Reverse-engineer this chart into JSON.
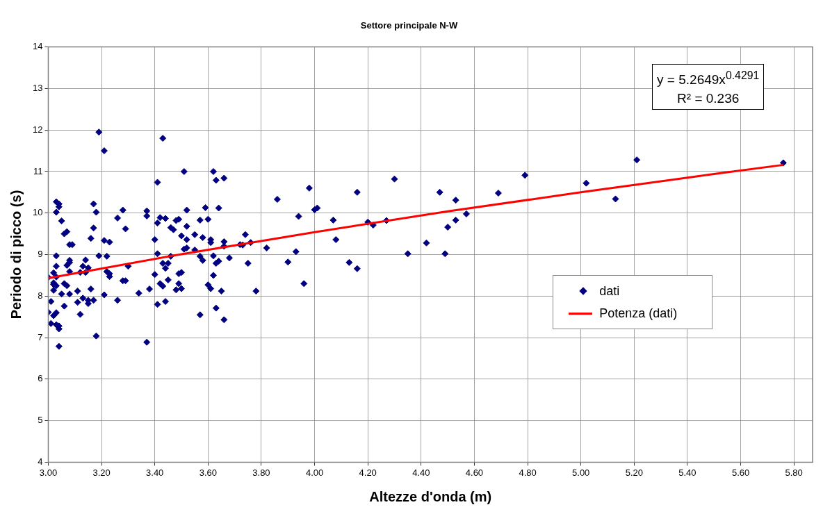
{
  "chart_data": {
    "type": "scatter",
    "title": "Settore principale N-W",
    "xlabel": "Altezze d'onda (m)",
    "ylabel": "Periodo di picco (s)",
    "xlim": [
      3,
      5.87
    ],
    "xticks": [
      {
        "value": 3,
        "label": "3.00"
      },
      {
        "value": 3.2,
        "label": "3.20"
      },
      {
        "value": 3.4,
        "label": "3.40"
      },
      {
        "value": 3.6,
        "label": "3.60"
      },
      {
        "value": 3.8,
        "label": "3.80"
      },
      {
        "value": 4,
        "label": "4.00"
      },
      {
        "value": 4.2,
        "label": "4.20"
      },
      {
        "value": 4.4,
        "label": "4.40"
      },
      {
        "value": 4.6,
        "label": "4.60"
      },
      {
        "value": 4.8,
        "label": "4.80"
      },
      {
        "value": 5,
        "label": "5.00"
      },
      {
        "value": 5.2,
        "label": "5.20"
      },
      {
        "value": 5.4,
        "label": "5.40"
      },
      {
        "value": 5.6,
        "label": "5.60"
      },
      {
        "value": 5.8,
        "label": "5.80"
      }
    ],
    "ylim": [
      4,
      14
    ],
    "yticks": [
      4,
      5,
      6,
      7,
      8,
      9,
      10,
      11,
      12,
      13,
      14
    ],
    "grid": true,
    "legend": "right",
    "marker": "diamond",
    "annotations": [
      "y = 5.2649x$^{0.4291}$",
      "R² = 0.236"
    ],
    "series": [
      {
        "name": "dati",
        "color": "#000080",
        "x": [
          3.0,
          3.0,
          3.01,
          3.01,
          3.02,
          3.02,
          3.02,
          3.02,
          3.03,
          3.03,
          3.03,
          3.03,
          3.02,
          3.03,
          3.03,
          3.04,
          3.04,
          3.03,
          3.03,
          3.04,
          3.04,
          3.04,
          3.05,
          3.06,
          3.07,
          3.05,
          3.06,
          3.07,
          3.06,
          3.07,
          3.08,
          3.08,
          3.08,
          3.09,
          3.08,
          3.08,
          3.11,
          3.11,
          3.12,
          3.12,
          3.13,
          3.14,
          3.14,
          3.13,
          3.15,
          3.15,
          3.15,
          3.16,
          3.16,
          3.17,
          3.17,
          3.18,
          3.17,
          3.18,
          3.19,
          3.19,
          3.21,
          3.21,
          3.21,
          3.22,
          3.23,
          3.22,
          3.23,
          3.23,
          3.26,
          3.26,
          3.28,
          3.29,
          3.28,
          3.29,
          3.3,
          3.34,
          3.37,
          3.37,
          3.37,
          3.38,
          3.4,
          3.4,
          3.41,
          3.41,
          3.41,
          3.41,
          3.42,
          3.42,
          3.43,
          3.43,
          3.43,
          3.44,
          3.45,
          3.44,
          3.44,
          3.45,
          3.46,
          3.47,
          3.46,
          3.48,
          3.48,
          3.51,
          3.62,
          3.63,
          3.66,
          3.86,
          3.52,
          3.59,
          3.64,
          3.49,
          3.57,
          3.6,
          3.94,
          3.52,
          3.5,
          3.52,
          3.55,
          3.58,
          3.61,
          3.61,
          3.66,
          3.66,
          3.74,
          3.72,
          3.73,
          3.76,
          3.82,
          3.51,
          3.52,
          3.55,
          3.57,
          3.58,
          3.62,
          3.63,
          3.64,
          3.68,
          3.75,
          3.9,
          3.93,
          3.49,
          3.5,
          3.62,
          3.49,
          3.5,
          3.6,
          3.61,
          3.65,
          3.78,
          3.96,
          3.63,
          3.57,
          3.66,
          3.98,
          4.0,
          4.01,
          4.16,
          4.3,
          4.47,
          4.53,
          4.69,
          4.07,
          4.08,
          4.2,
          4.22,
          4.27,
          4.53,
          4.5,
          4.57,
          4.13,
          4.16,
          4.35,
          4.42,
          4.49,
          4.79,
          5.02,
          5.13,
          5.21,
          5.76
        ],
        "values": [
          8.45,
          7.61,
          7.87,
          7.34,
          8.56,
          8.32,
          8.28,
          8.14,
          8.25,
          8.72,
          8.97,
          8.46,
          7.53,
          7.6,
          10.27,
          10.22,
          10.15,
          10.02,
          7.31,
          7.28,
          7.21,
          6.79,
          9.81,
          9.5,
          9.55,
          8.05,
          8.3,
          8.25,
          7.76,
          8.74,
          8.81,
          8.86,
          9.24,
          9.24,
          8.59,
          8.05,
          8.12,
          7.85,
          7.56,
          8.57,
          8.72,
          8.87,
          8.57,
          7.95,
          7.9,
          7.82,
          8.68,
          8.17,
          9.39,
          9.64,
          10.22,
          10.02,
          7.9,
          7.04,
          8.97,
          11.95,
          11.5,
          9.34,
          8.03,
          8.96,
          9.3,
          8.59,
          8.54,
          8.47,
          9.88,
          7.9,
          10.07,
          9.62,
          8.37,
          8.37,
          8.72,
          8.07,
          6.89,
          10.05,
          9.93,
          8.17,
          9.36,
          8.52,
          10.74,
          9.76,
          9.02,
          7.8,
          9.89,
          8.3,
          8.24,
          11.8,
          8.79,
          8.67,
          8.79,
          7.87,
          9.87,
          8.39,
          9.65,
          9.6,
          8.96,
          8.15,
          9.82,
          11.0,
          11.0,
          10.79,
          10.84,
          10.33,
          10.07,
          10.13,
          10.12,
          9.85,
          9.83,
          9.85,
          9.92,
          9.68,
          9.45,
          9.36,
          9.48,
          9.41,
          9.36,
          9.29,
          9.31,
          9.2,
          9.48,
          9.24,
          9.23,
          9.29,
          9.16,
          9.13,
          9.16,
          9.11,
          8.96,
          8.86,
          8.97,
          8.79,
          8.84,
          8.92,
          8.79,
          8.82,
          9.07,
          8.54,
          8.57,
          8.5,
          8.3,
          8.18,
          8.27,
          8.18,
          8.12,
          8.12,
          8.3,
          7.71,
          7.55,
          7.43,
          10.6,
          10.08,
          10.12,
          10.5,
          10.82,
          10.5,
          10.31,
          10.48,
          9.83,
          9.36,
          9.78,
          9.71,
          9.82,
          9.83,
          9.66,
          9.98,
          8.81,
          8.66,
          9.02,
          9.28,
          9.02,
          10.91,
          10.72,
          10.34,
          11.28,
          11.21
        ]
      },
      {
        "name": "Potenza (dati)",
        "type": "line",
        "color": "#ff0000",
        "marker": "none",
        "line_style": "solid",
        "x": [
          3.0,
          3.5,
          4.0,
          4.5,
          5.0,
          5.5,
          5.76
        ],
        "values": [
          8.43,
          9.01,
          9.54,
          10.04,
          10.5,
          10.94,
          11.16
        ]
      }
    ]
  }
}
